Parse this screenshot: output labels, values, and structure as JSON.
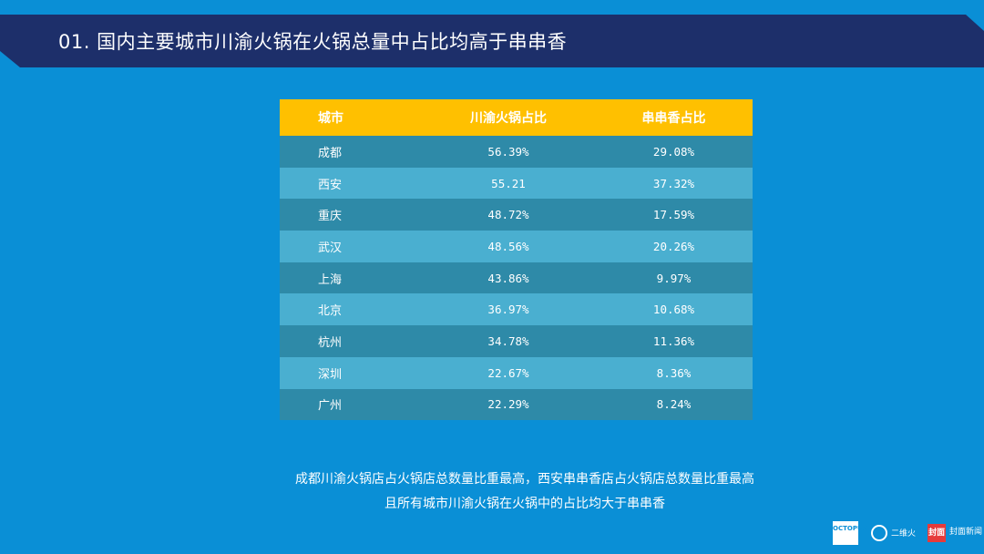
{
  "title": "01. 国内主要城市川渝火锅在火锅总量中占比均高于串串香",
  "colors": {
    "background": "#0a8fd6",
    "title_bar": "#1d2f6a",
    "header": "#ffc000",
    "row_dark": "#2e8aa8",
    "row_light": "#4aafd0"
  },
  "chart_data": {
    "type": "table",
    "columns": [
      "城市",
      "川渝火锅占比",
      "串串香占比"
    ],
    "rows": [
      [
        "成都",
        "56.39%",
        "29.08%"
      ],
      [
        "西安",
        "55.21",
        "37.32%"
      ],
      [
        "重庆",
        "48.72%",
        "17.59%"
      ],
      [
        "武汉",
        "48.56%",
        "20.26%"
      ],
      [
        "上海",
        "43.86%",
        "9.97%"
      ],
      [
        "北京",
        "36.97%",
        "10.68%"
      ],
      [
        "杭州",
        "34.78%",
        "11.36%"
      ],
      [
        "深圳",
        "22.67%",
        "8.36%"
      ],
      [
        "广州",
        "22.29%",
        "8.24%"
      ]
    ]
  },
  "caption": {
    "line1": "成都川渝火锅店占火锅店总数量比重最高，西安串串香店占火锅店总数量比重最高",
    "line2": "且所有城市川渝火锅在火锅中的占比均大于串串香"
  },
  "logos": {
    "octopus": "OCTOPUS",
    "erwei": "二维火",
    "fengmian_mark": "封面",
    "fengmian_text": "封面新闻"
  }
}
